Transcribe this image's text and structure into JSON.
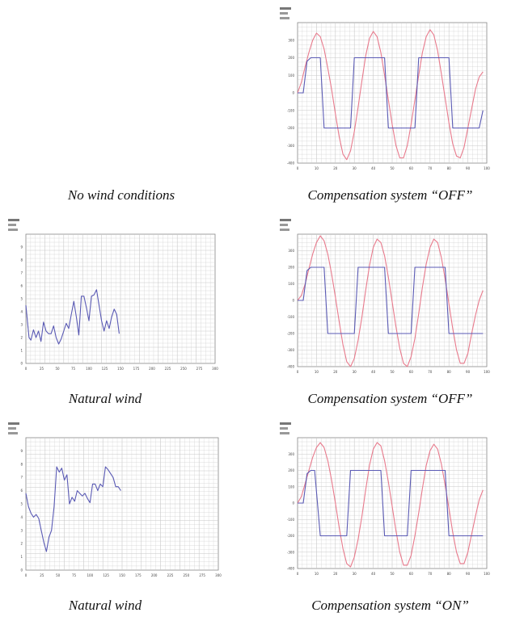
{
  "captions": {
    "top_left": "No wind conditions",
    "top_right": "Compensation system “OFF”",
    "mid_left": "Natural wind",
    "mid_right": "Compensation system “OFF”",
    "bot_left": "Natural wind",
    "bot_right": "Compensation system “ON”"
  },
  "colors": {
    "blue": "#5a5ab4",
    "red": "#e87a8c",
    "grid": "#c8c8c8",
    "frame": "#888888"
  },
  "chart_data": [
    {
      "id": "top_right",
      "type": "line",
      "ylim": [
        -400,
        400
      ],
      "xlim": [
        0,
        100
      ],
      "yticks": [
        300,
        200,
        100,
        0,
        -100,
        -200,
        -300,
        -400
      ],
      "xticks": [
        0,
        10,
        20,
        30,
        40,
        50,
        60,
        70,
        80,
        90,
        100
      ],
      "series": [
        {
          "color": "#e87a8c",
          "x": [
            0,
            2,
            4,
            6,
            8,
            10,
            12,
            14,
            16,
            18,
            20,
            22,
            24,
            26,
            28,
            30,
            32,
            34,
            36,
            38,
            40,
            42,
            44,
            46,
            48,
            50,
            52,
            54,
            56,
            58,
            60,
            62,
            64,
            66,
            68,
            70,
            72,
            74,
            76,
            78,
            80,
            82,
            84,
            86,
            88,
            90,
            92,
            94,
            96,
            98
          ],
          "y": [
            0,
            60,
            150,
            230,
            300,
            340,
            320,
            250,
            140,
            20,
            -120,
            -250,
            -350,
            -380,
            -330,
            -220,
            -80,
            70,
            210,
            310,
            350,
            320,
            230,
            100,
            -40,
            -180,
            -300,
            -370,
            -370,
            -300,
            -180,
            -40,
            100,
            230,
            320,
            360,
            330,
            240,
            110,
            -30,
            -170,
            -290,
            -360,
            -370,
            -310,
            -200,
            -90,
            20,
            90,
            120
          ]
        },
        {
          "color": "#5a5ab4",
          "x": [
            0,
            3,
            5,
            7,
            10,
            12,
            14,
            16,
            18,
            20,
            22,
            24,
            26,
            28,
            30,
            32,
            34,
            36,
            38,
            40,
            42,
            44,
            46,
            48,
            50,
            52,
            54,
            56,
            58,
            60,
            62,
            64,
            66,
            68,
            70,
            72,
            74,
            76,
            78,
            80,
            82,
            84,
            86,
            88,
            90,
            92,
            94,
            96,
            98
          ],
          "y": [
            0,
            0,
            180,
            200,
            200,
            200,
            -200,
            -200,
            -200,
            -200,
            -200,
            -200,
            -200,
            -200,
            200,
            200,
            200,
            200,
            200,
            200,
            200,
            200,
            200,
            -200,
            -200,
            -200,
            -200,
            -200,
            -200,
            -200,
            -200,
            200,
            200,
            200,
            200,
            200,
            200,
            200,
            200,
            200,
            -200,
            -200,
            -200,
            -200,
            -200,
            -200,
            -200,
            -200,
            -100
          ]
        }
      ]
    },
    {
      "id": "mid_left",
      "type": "line",
      "ylim": [
        0,
        10
      ],
      "xlim": [
        0,
        300
      ],
      "yticks": [
        9,
        8,
        7,
        6,
        5,
        4,
        3,
        2,
        1,
        0
      ],
      "xticks": [
        0,
        25,
        50,
        75,
        100,
        125,
        150,
        175,
        200,
        225,
        250,
        275,
        300
      ],
      "series": [
        {
          "color": "#5a5ab4",
          "x": [
            0,
            5,
            8,
            12,
            16,
            20,
            24,
            28,
            32,
            36,
            40,
            44,
            48,
            52,
            56,
            60,
            64,
            68,
            72,
            76,
            80,
            84,
            88,
            92,
            96,
            100,
            104,
            108,
            112,
            116,
            120,
            124,
            128,
            132,
            136,
            140,
            144,
            148
          ],
          "y": [
            4.5,
            2,
            1.8,
            2.6,
            2,
            2.5,
            1.7,
            3.2,
            2.5,
            2.3,
            2.3,
            2.9,
            2,
            1.5,
            1.9,
            2.5,
            3.1,
            2.7,
            3.8,
            4.8,
            3.6,
            2.2,
            5.2,
            5.2,
            4.3,
            3.3,
            5.2,
            5.3,
            5.7,
            4.5,
            3.3,
            2.5,
            3.3,
            2.7,
            3.6,
            4.2,
            3.8,
            2.3
          ]
        }
      ]
    },
    {
      "id": "mid_right",
      "type": "line",
      "ylim": [
        -400,
        400
      ],
      "xlim": [
        0,
        100
      ],
      "yticks": [
        300,
        200,
        100,
        0,
        -100,
        -200,
        -300,
        -400
      ],
      "xticks": [
        0,
        10,
        20,
        30,
        40,
        50,
        60,
        70,
        80,
        90,
        100
      ],
      "series": [
        {
          "color": "#e87a8c",
          "x": [
            0,
            2,
            4,
            6,
            8,
            10,
            12,
            14,
            16,
            18,
            20,
            22,
            24,
            26,
            28,
            30,
            32,
            34,
            36,
            38,
            40,
            42,
            44,
            46,
            48,
            50,
            52,
            54,
            56,
            58,
            60,
            62,
            64,
            66,
            68,
            70,
            72,
            74,
            76,
            78,
            80,
            82,
            84,
            86,
            88,
            90,
            92,
            94,
            96,
            98
          ],
          "y": [
            0,
            30,
            100,
            190,
            280,
            350,
            390,
            360,
            280,
            160,
            20,
            -130,
            -270,
            -370,
            -400,
            -350,
            -240,
            -100,
            60,
            210,
            320,
            370,
            350,
            270,
            140,
            -10,
            -160,
            -290,
            -380,
            -400,
            -340,
            -230,
            -80,
            80,
            220,
            320,
            370,
            350,
            260,
            130,
            -20,
            -170,
            -300,
            -380,
            -380,
            -320,
            -200,
            -90,
            0,
            60
          ]
        },
        {
          "color": "#5a5ab4",
          "x": [
            0,
            3,
            5,
            7,
            9,
            12,
            14,
            16,
            18,
            20,
            22,
            24,
            26,
            28,
            30,
            32,
            34,
            36,
            38,
            40,
            42,
            44,
            46,
            48,
            50,
            52,
            54,
            56,
            58,
            60,
            62,
            64,
            66,
            68,
            70,
            72,
            74,
            76,
            78,
            80,
            82,
            84,
            86,
            88,
            90,
            92,
            94,
            96,
            98
          ],
          "y": [
            0,
            0,
            180,
            200,
            200,
            200,
            200,
            -200,
            -200,
            -200,
            -200,
            -200,
            -200,
            -200,
            -200,
            200,
            200,
            200,
            200,
            200,
            200,
            200,
            200,
            -200,
            -200,
            -200,
            -200,
            -200,
            -200,
            -200,
            200,
            200,
            200,
            200,
            200,
            200,
            200,
            200,
            200,
            -200,
            -200,
            -200,
            -200,
            -200,
            -200,
            -200,
            -200,
            -200,
            -200
          ]
        }
      ]
    },
    {
      "id": "bot_left",
      "type": "line",
      "ylim": [
        0,
        10
      ],
      "xlim": [
        0,
        300
      ],
      "yticks": [
        9,
        8,
        7,
        6,
        5,
        4,
        3,
        2,
        1,
        0
      ],
      "xticks": [
        0,
        25,
        50,
        75,
        100,
        125,
        150,
        175,
        200,
        225,
        250,
        275,
        300
      ],
      "series": [
        {
          "color": "#5a5ab4",
          "x": [
            0,
            4,
            8,
            12,
            16,
            20,
            24,
            28,
            32,
            36,
            40,
            44,
            48,
            52,
            56,
            60,
            64,
            68,
            72,
            76,
            80,
            84,
            88,
            92,
            96,
            100,
            104,
            108,
            112,
            116,
            120,
            124,
            128,
            132,
            136,
            140,
            144,
            148
          ],
          "y": [
            5.8,
            4.8,
            4.3,
            4,
            4.2,
            3.9,
            3,
            2.1,
            1.4,
            2.5,
            3,
            4.8,
            7.8,
            7.4,
            7.7,
            6.8,
            7.2,
            5,
            5.5,
            5.2,
            6,
            5.8,
            5.6,
            5.8,
            5.4,
            5.1,
            6.5,
            6.5,
            6,
            6.5,
            6.3,
            7.8,
            7.6,
            7.3,
            7,
            6.3,
            6.3,
            6
          ]
        }
      ]
    },
    {
      "id": "bot_right",
      "type": "line",
      "ylim": [
        -400,
        400
      ],
      "xlim": [
        0,
        100
      ],
      "yticks": [
        300,
        200,
        100,
        0,
        -100,
        -200,
        -300,
        -400
      ],
      "xticks": [
        0,
        10,
        20,
        30,
        40,
        50,
        60,
        70,
        80,
        90,
        100
      ],
      "series": [
        {
          "color": "#e87a8c",
          "x": [
            0,
            2,
            4,
            6,
            8,
            10,
            12,
            14,
            16,
            18,
            20,
            22,
            24,
            26,
            28,
            30,
            32,
            34,
            36,
            38,
            40,
            42,
            44,
            46,
            48,
            50,
            52,
            54,
            56,
            58,
            60,
            62,
            64,
            66,
            68,
            70,
            72,
            74,
            76,
            78,
            80,
            82,
            84,
            86,
            88,
            90,
            92,
            94,
            96,
            98
          ],
          "y": [
            0,
            40,
            120,
            200,
            280,
            340,
            370,
            340,
            260,
            140,
            0,
            -150,
            -280,
            -370,
            -390,
            -330,
            -220,
            -80,
            80,
            230,
            330,
            370,
            350,
            260,
            130,
            -20,
            -170,
            -300,
            -380,
            -380,
            -320,
            -200,
            -60,
            90,
            230,
            320,
            360,
            330,
            240,
            110,
            -30,
            -180,
            -300,
            -370,
            -370,
            -300,
            -190,
            -80,
            20,
            80
          ]
        },
        {
          "color": "#5a5ab4",
          "x": [
            0,
            3,
            5,
            7,
            9,
            12,
            14,
            16,
            18,
            20,
            22,
            24,
            26,
            28,
            30,
            32,
            34,
            36,
            38,
            40,
            42,
            44,
            46,
            48,
            50,
            52,
            54,
            56,
            58,
            60,
            62,
            64,
            66,
            68,
            70,
            72,
            74,
            76,
            78,
            80,
            82,
            84,
            86,
            88,
            90,
            92,
            94,
            96,
            98
          ],
          "y": [
            0,
            0,
            180,
            200,
            200,
            -200,
            -200,
            -200,
            -200,
            -200,
            -200,
            -200,
            -200,
            200,
            200,
            200,
            200,
            200,
            200,
            200,
            200,
            200,
            -200,
            -200,
            -200,
            -200,
            -200,
            -200,
            -200,
            200,
            200,
            200,
            200,
            200,
            200,
            200,
            200,
            200,
            200,
            -200,
            -200,
            -200,
            -200,
            -200,
            -200,
            -200,
            -200,
            -200,
            -200
          ]
        }
      ]
    }
  ]
}
